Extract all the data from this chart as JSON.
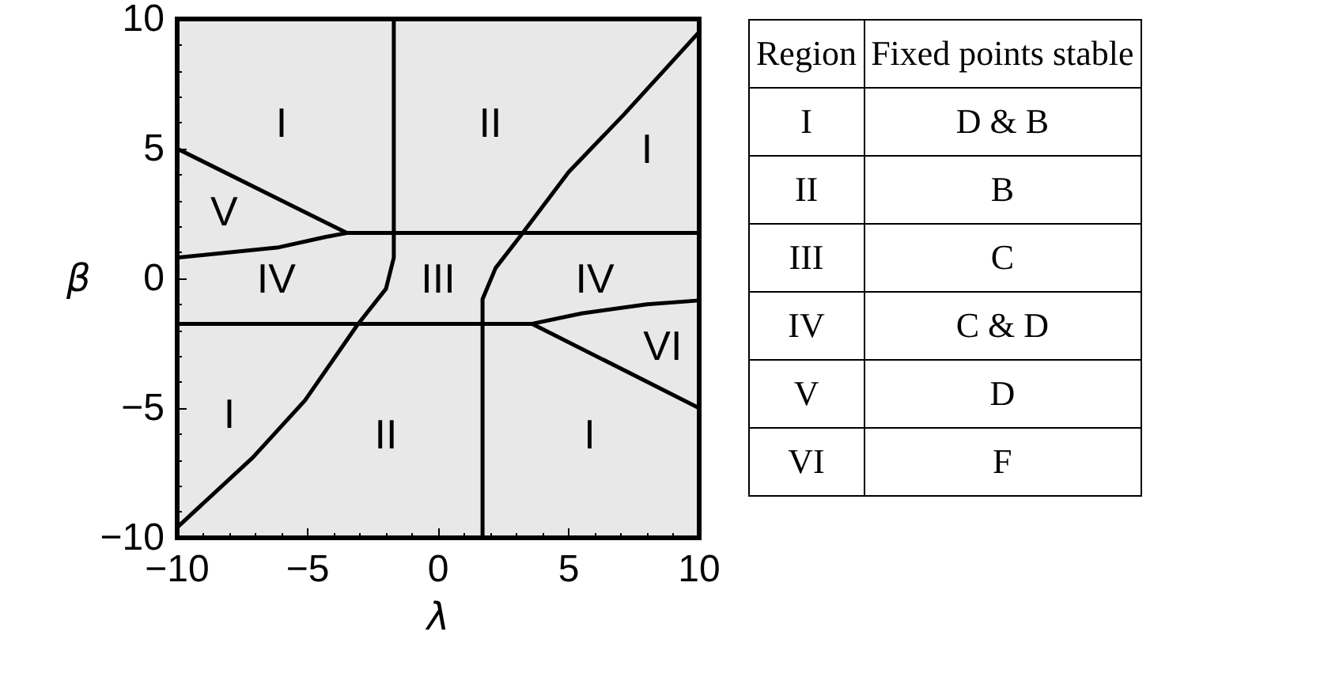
{
  "chart_data": {
    "type": "line",
    "xlabel": "λ",
    "ylabel": "β",
    "xlim": [
      -10,
      10
    ],
    "ylim": [
      -10,
      10
    ],
    "xticks": [
      -10,
      -5,
      0,
      5,
      10
    ],
    "yticks": [
      -10,
      -5,
      0,
      5,
      10
    ],
    "grid": false,
    "series": [
      {
        "color": "#000000",
        "x": [
          -1.7,
          -1.7,
          -1.7,
          -2.0,
          -3.1,
          -5.1,
          -7.1,
          -10
        ],
        "values": [
          10,
          1.75,
          0.8,
          -0.4,
          -1.8,
          -4.7,
          -6.9,
          -9.6
        ]
      },
      {
        "color": "#000000",
        "x": [
          1.7,
          1.7,
          1.7,
          2.2,
          3.2,
          5.0,
          7.1,
          10
        ],
        "values": [
          -10,
          -1.75,
          -0.8,
          0.4,
          1.7,
          4.1,
          6.3,
          9.5
        ]
      },
      {
        "color": "#000000",
        "x": [
          -10,
          -6.1,
          -4.3,
          -3.5,
          10
        ],
        "values": [
          0.8,
          1.2,
          1.6,
          1.75,
          1.75
        ]
      },
      {
        "color": "#000000",
        "x": [
          -10,
          3.6,
          5.5,
          8,
          10
        ],
        "values": [
          -1.75,
          -1.75,
          -1.35,
          -1.0,
          -0.85
        ]
      },
      {
        "color": "#000000",
        "x": [
          -10,
          -3.5
        ],
        "values": [
          5,
          1.75
        ]
      },
      {
        "color": "#000000",
        "x": [
          3.6,
          10
        ],
        "values": [
          -1.75,
          -5
        ]
      }
    ],
    "annotations": [
      "I",
      "II",
      "I",
      "V",
      "IV",
      "III",
      "IV",
      "VI",
      "I",
      "II",
      "I",
      "Region",
      "Fixed points stable",
      "I",
      "D & B",
      "II",
      "B",
      "III",
      "C",
      "IV",
      "C & D",
      "V",
      "D",
      "VI",
      "F"
    ]
  }
}
